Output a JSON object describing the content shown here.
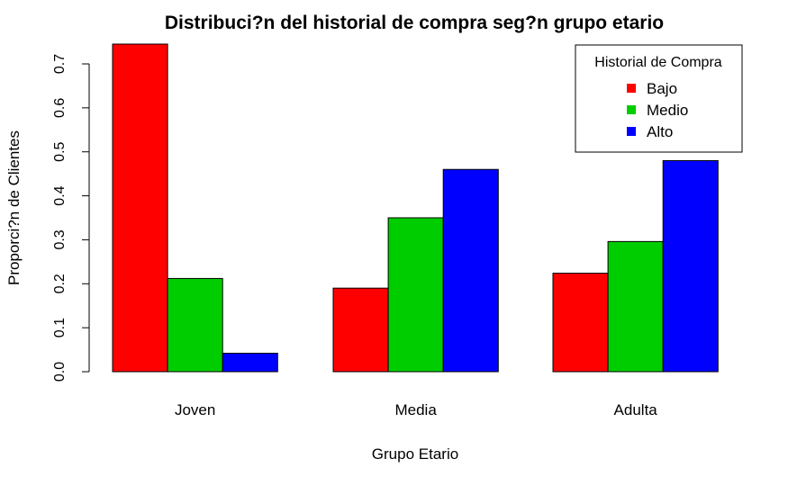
{
  "chart_data": {
    "type": "bar",
    "title": "Distribuci?n del historial de compra seg?n grupo etario",
    "xlabel": "Grupo Etario",
    "ylabel": "Proporci?n de Clientes",
    "categories": [
      "Joven",
      "Media",
      "Adulta"
    ],
    "series": [
      {
        "name": "Bajo",
        "color": "#ff0000",
        "values": [
          0.745,
          0.19,
          0.224
        ]
      },
      {
        "name": "Medio",
        "color": "#00cd00",
        "values": [
          0.212,
          0.35,
          0.296
        ]
      },
      {
        "name": "Alto",
        "color": "#0000ff",
        "values": [
          0.042,
          0.46,
          0.48
        ]
      }
    ],
    "ylim": [
      0,
      0.745
    ],
    "yticks": [
      0.0,
      0.1,
      0.2,
      0.3,
      0.4,
      0.5,
      0.6,
      0.7
    ],
    "ytick_labels": [
      "0.0",
      "0.1",
      "0.2",
      "0.3",
      "0.4",
      "0.5",
      "0.6",
      "0.7"
    ],
    "grid": false,
    "bar_mode": "grouped",
    "legend": {
      "title": "Historial de Compra",
      "position": "top-right"
    }
  }
}
